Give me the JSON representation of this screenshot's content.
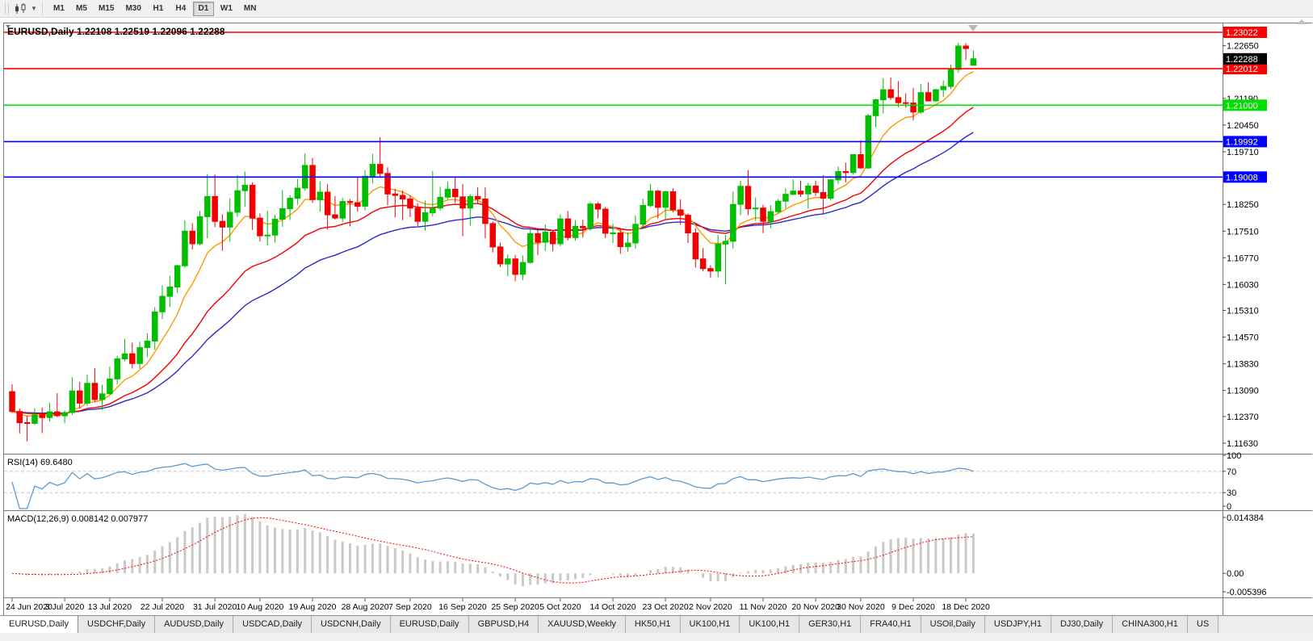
{
  "toolbar": {
    "chart_type_icon": "candlestick-chart-icon",
    "dropdown_glyph": "▼",
    "timeframes": [
      "M1",
      "M5",
      "M15",
      "M30",
      "H1",
      "H4",
      "D1",
      "W1",
      "MN"
    ],
    "selected_timeframe": "D1"
  },
  "chart": {
    "title": "EURUSD,Daily 1.22108 1.22519 1.22096 1.22288",
    "symbol": "EURUSD,Daily",
    "open": "1.22108",
    "high": "1.22519",
    "low": "1.22096",
    "close": "1.22288"
  },
  "price_axis": {
    "ticks": [
      1.2265,
      1.2119,
      1.2045,
      1.1971,
      1.1825,
      1.1751,
      1.1677,
      1.1603,
      1.1531,
      1.1457,
      1.1383,
      1.1309,
      1.1237,
      1.1163
    ]
  },
  "rsi_axis": {
    "labels": [
      "100",
      "70",
      "30",
      "0"
    ]
  },
  "macd_axis": {
    "labels": [
      "0.014384",
      "0.00",
      "-0.005396"
    ]
  },
  "time_axis": {
    "labels": [
      {
        "text": "24 Jun 2020",
        "bar": 0
      },
      {
        "text": "3 Jul 2020",
        "bar": 7
      },
      {
        "text": "13 Jul 2020",
        "bar": 13
      },
      {
        "text": "22 Jul 2020",
        "bar": 20
      },
      {
        "text": "31 Jul 2020",
        "bar": 27
      },
      {
        "text": "10 Aug 2020",
        "bar": 33
      },
      {
        "text": "19 Aug 2020",
        "bar": 40
      },
      {
        "text": "28 Aug 2020",
        "bar": 47
      },
      {
        "text": "7 Sep 2020",
        "bar": 53
      },
      {
        "text": "16 Sep 2020",
        "bar": 60
      },
      {
        "text": "25 Sep 2020",
        "bar": 67
      },
      {
        "text": "5 Oct 2020",
        "bar": 73
      },
      {
        "text": "14 Oct 2020",
        "bar": 80
      },
      {
        "text": "23 Oct 2020",
        "bar": 87
      },
      {
        "text": "2 Nov 2020",
        "bar": 93
      },
      {
        "text": "11 Nov 2020",
        "bar": 100
      },
      {
        "text": "20 Nov 2020",
        "bar": 107
      },
      {
        "text": "30 Nov 2020",
        "bar": 113
      },
      {
        "text": "9 Dec 2020",
        "bar": 120
      },
      {
        "text": "18 Dec 2020",
        "bar": 127
      }
    ]
  },
  "tabs": [
    {
      "label": "EURUSD,Daily",
      "active": true
    },
    {
      "label": "USDCHF,Daily"
    },
    {
      "label": "AUDUSD,Daily"
    },
    {
      "label": "USDCAD,Daily"
    },
    {
      "label": "USDCNH,Daily"
    },
    {
      "label": "EURUSD,Daily"
    },
    {
      "label": "GBPUSD,H4"
    },
    {
      "label": "XAUUSD,Weekly"
    },
    {
      "label": "HK50,H1"
    },
    {
      "label": "UK100,H1"
    },
    {
      "label": "UK100,H1"
    },
    {
      "label": "GER30,H1"
    },
    {
      "label": "FRA40,H1"
    },
    {
      "label": "USOil,Daily"
    },
    {
      "label": "USDJPY,H1"
    },
    {
      "label": "DJ30,Daily"
    },
    {
      "label": "CHINA300,H1"
    },
    {
      "label": "US"
    }
  ],
  "chart_data": {
    "type": "candlestick",
    "symbol": "EURUSD",
    "timeframe": "Daily",
    "date_range": "24 Jun 2020 - 21 Dec 2020",
    "colors": {
      "bull": "#00bf00",
      "bear": "#f20000",
      "background": "#ffffff"
    },
    "current_price": {
      "value": 1.22288,
      "bg": "#000000",
      "fg": "#ffffff"
    },
    "hlines": [
      {
        "price": 1.23022,
        "color": "#ff0000"
      },
      {
        "price": 1.22012,
        "color": "#ff0000"
      },
      {
        "price": 1.21,
        "color": "#00e000"
      },
      {
        "price": 1.19992,
        "color": "#0000ff"
      },
      {
        "price": 1.19008,
        "color": "#0000ff"
      }
    ],
    "moving_averages": [
      {
        "name": "slow",
        "period": 34,
        "color": "#2a2ace"
      },
      {
        "name": "medium",
        "period": 21,
        "color": "#f40000"
      },
      {
        "name": "fast",
        "period": 8,
        "color": "#ff9900"
      }
    ],
    "indicators": {
      "rsi": {
        "label": "RSI(14) 69.6480",
        "period": 14,
        "value": 69.648,
        "levels": [
          70,
          30
        ],
        "color": "#5a9bd4"
      },
      "macd": {
        "label": "MACD(12,26,9) 0.008142 0.007977",
        "fast": 12,
        "slow": 26,
        "signal": 9,
        "main_value": 0.008142,
        "signal_value": 0.007977,
        "scale_top": 0.014384,
        "scale_bottom": -0.005396,
        "histogram_color": "#c9c9c9",
        "signal_color": "#ff0000"
      }
    },
    "candles": [
      [
        1.1306,
        1.1326,
        1.1247,
        1.1251
      ],
      [
        1.1251,
        1.1259,
        1.119,
        1.122
      ],
      [
        1.122,
        1.1239,
        1.1168,
        1.1218
      ],
      [
        1.1218,
        1.126,
        1.1214,
        1.1242
      ],
      [
        1.1242,
        1.1262,
        1.1191,
        1.1234
      ],
      [
        1.1234,
        1.1275,
        1.1223,
        1.125
      ],
      [
        1.125,
        1.1302,
        1.1235,
        1.1239
      ],
      [
        1.1239,
        1.1254,
        1.1218,
        1.1248
      ],
      [
        1.1248,
        1.1346,
        1.1241,
        1.1308
      ],
      [
        1.1308,
        1.1333,
        1.1259,
        1.1274
      ],
      [
        1.1274,
        1.1353,
        1.1266,
        1.1329
      ],
      [
        1.1329,
        1.1371,
        1.1277,
        1.1284
      ],
      [
        1.1284,
        1.1325,
        1.1255,
        1.13
      ],
      [
        1.13,
        1.1375,
        1.1297,
        1.1341
      ],
      [
        1.1341,
        1.1405,
        1.1326,
        1.1397
      ],
      [
        1.1397,
        1.1452,
        1.139,
        1.1411
      ],
      [
        1.1411,
        1.1442,
        1.137,
        1.1384
      ],
      [
        1.1384,
        1.1444,
        1.1369,
        1.1428
      ],
      [
        1.1428,
        1.1468,
        1.1402,
        1.1446
      ],
      [
        1.1446,
        1.154,
        1.1422,
        1.1527
      ],
      [
        1.1527,
        1.1601,
        1.1507,
        1.157
      ],
      [
        1.157,
        1.1627,
        1.154,
        1.1596
      ],
      [
        1.1596,
        1.1658,
        1.158,
        1.1655
      ],
      [
        1.1655,
        1.1781,
        1.1649,
        1.1751
      ],
      [
        1.1751,
        1.1773,
        1.17,
        1.1716
      ],
      [
        1.1716,
        1.1807,
        1.1712,
        1.1791
      ],
      [
        1.1791,
        1.1909,
        1.1731,
        1.1847
      ],
      [
        1.1847,
        1.1908,
        1.1762,
        1.1778
      ],
      [
        1.1778,
        1.1798,
        1.1696,
        1.1762
      ],
      [
        1.1762,
        1.1842,
        1.1722,
        1.1803
      ],
      [
        1.1803,
        1.1906,
        1.179,
        1.1863
      ],
      [
        1.1863,
        1.1916,
        1.1818,
        1.1878
      ],
      [
        1.1878,
        1.1886,
        1.1754,
        1.1787
      ],
      [
        1.1787,
        1.18,
        1.1722,
        1.1738
      ],
      [
        1.1738,
        1.1808,
        1.1711,
        1.174
      ],
      [
        1.174,
        1.1796,
        1.1719,
        1.1784
      ],
      [
        1.1784,
        1.1865,
        1.1763,
        1.1813
      ],
      [
        1.1813,
        1.1851,
        1.1782,
        1.1842
      ],
      [
        1.1842,
        1.1896,
        1.1824,
        1.187
      ],
      [
        1.187,
        1.1966,
        1.1863,
        1.1933
      ],
      [
        1.1933,
        1.1954,
        1.1829,
        1.1838
      ],
      [
        1.1838,
        1.1889,
        1.1805,
        1.1859
      ],
      [
        1.1859,
        1.1882,
        1.1755,
        1.1796
      ],
      [
        1.1796,
        1.1848,
        1.1783,
        1.1787
      ],
      [
        1.1787,
        1.1843,
        1.1775,
        1.1833
      ],
      [
        1.1833,
        1.1839,
        1.1764,
        1.183
      ],
      [
        1.183,
        1.1899,
        1.1805,
        1.182
      ],
      [
        1.182,
        1.192,
        1.1808,
        1.1903
      ],
      [
        1.1903,
        1.1965,
        1.1883,
        1.1936
      ],
      [
        1.1936,
        1.2011,
        1.1898,
        1.1911
      ],
      [
        1.1911,
        1.1928,
        1.1822,
        1.1854
      ],
      [
        1.1854,
        1.1868,
        1.1789,
        1.185
      ],
      [
        1.185,
        1.1864,
        1.1781,
        1.184
      ],
      [
        1.184,
        1.185,
        1.179,
        1.1815
      ],
      [
        1.1815,
        1.1828,
        1.1765,
        1.1778
      ],
      [
        1.1778,
        1.1834,
        1.1753,
        1.1802
      ],
      [
        1.1802,
        1.1918,
        1.1791,
        1.1815
      ],
      [
        1.1815,
        1.1874,
        1.1808,
        1.1845
      ],
      [
        1.1845,
        1.1888,
        1.1839,
        1.1867
      ],
      [
        1.1867,
        1.19,
        1.1829,
        1.1846
      ],
      [
        1.1846,
        1.1882,
        1.1737,
        1.1815
      ],
      [
        1.1815,
        1.1853,
        1.1766,
        1.1847
      ],
      [
        1.1847,
        1.1872,
        1.1826,
        1.184
      ],
      [
        1.184,
        1.1872,
        1.1731,
        1.1772
      ],
      [
        1.1772,
        1.1778,
        1.1692,
        1.1707
      ],
      [
        1.1707,
        1.1719,
        1.1651,
        1.166
      ],
      [
        1.166,
        1.1686,
        1.1626,
        1.1674
      ],
      [
        1.1674,
        1.1685,
        1.1612,
        1.1631
      ],
      [
        1.1631,
        1.1683,
        1.1615,
        1.1664
      ],
      [
        1.1664,
        1.1755,
        1.1661,
        1.1744
      ],
      [
        1.1744,
        1.1755,
        1.1684,
        1.172
      ],
      [
        1.172,
        1.1769,
        1.1696,
        1.1748
      ],
      [
        1.1748,
        1.1752,
        1.1695,
        1.1716
      ],
      [
        1.1716,
        1.1797,
        1.1709,
        1.1785
      ],
      [
        1.1785,
        1.1807,
        1.1725,
        1.1733
      ],
      [
        1.1733,
        1.1781,
        1.1724,
        1.1764
      ],
      [
        1.1764,
        1.1782,
        1.1733,
        1.176
      ],
      [
        1.176,
        1.1831,
        1.1752,
        1.1826
      ],
      [
        1.1826,
        1.1831,
        1.1786,
        1.1812
      ],
      [
        1.1812,
        1.1818,
        1.1732,
        1.1745
      ],
      [
        1.1745,
        1.1771,
        1.1718,
        1.1746
      ],
      [
        1.1746,
        1.1758,
        1.1688,
        1.1708
      ],
      [
        1.1708,
        1.1747,
        1.1694,
        1.1718
      ],
      [
        1.1718,
        1.1794,
        1.1703,
        1.177
      ],
      [
        1.177,
        1.1841,
        1.1761,
        1.1822
      ],
      [
        1.1822,
        1.1881,
        1.1817,
        1.1862
      ],
      [
        1.1862,
        1.1866,
        1.1786,
        1.1817
      ],
      [
        1.1817,
        1.1863,
        1.1785,
        1.186
      ],
      [
        1.186,
        1.187,
        1.1803,
        1.181
      ],
      [
        1.181,
        1.1839,
        1.1769,
        1.1795
      ],
      [
        1.1795,
        1.18,
        1.1718,
        1.1746
      ],
      [
        1.1746,
        1.1759,
        1.165,
        1.1674
      ],
      [
        1.1674,
        1.1704,
        1.164,
        1.1647
      ],
      [
        1.1647,
        1.1656,
        1.1622,
        1.164
      ],
      [
        1.164,
        1.1741,
        1.1623,
        1.1715
      ],
      [
        1.1715,
        1.174,
        1.1603,
        1.1723
      ],
      [
        1.1723,
        1.1861,
        1.1702,
        1.1825
      ],
      [
        1.1825,
        1.1891,
        1.1795,
        1.1875
      ],
      [
        1.1875,
        1.192,
        1.1795,
        1.1813
      ],
      [
        1.1813,
        1.1844,
        1.1779,
        1.1815
      ],
      [
        1.1815,
        1.1824,
        1.1745,
        1.1778
      ],
      [
        1.1778,
        1.1823,
        1.1759,
        1.1805
      ],
      [
        1.1805,
        1.184,
        1.1799,
        1.1834
      ],
      [
        1.1834,
        1.1869,
        1.1814,
        1.1853
      ],
      [
        1.1853,
        1.1894,
        1.185,
        1.1862
      ],
      [
        1.1862,
        1.1891,
        1.1846,
        1.1854
      ],
      [
        1.1854,
        1.1885,
        1.1813,
        1.1876
      ],
      [
        1.1876,
        1.1891,
        1.1849,
        1.1858
      ],
      [
        1.1858,
        1.1906,
        1.18,
        1.1842
      ],
      [
        1.1842,
        1.1895,
        1.1836,
        1.1893
      ],
      [
        1.1893,
        1.193,
        1.1881,
        1.1916
      ],
      [
        1.1916,
        1.1941,
        1.1886,
        1.1913
      ],
      [
        1.1913,
        1.1964,
        1.1908,
        1.1963
      ],
      [
        1.1963,
        1.2003,
        1.1923,
        1.1926
      ],
      [
        1.1926,
        1.2076,
        1.1923,
        1.2071
      ],
      [
        1.2071,
        1.2118,
        1.2039,
        1.2115
      ],
      [
        1.2115,
        1.2175,
        1.2077,
        1.2143
      ],
      [
        1.2143,
        1.2177,
        1.2115,
        1.2121
      ],
      [
        1.2121,
        1.2167,
        1.2095,
        1.2107
      ],
      [
        1.2107,
        1.2133,
        1.2093,
        1.2106
      ],
      [
        1.2106,
        1.2148,
        1.2058,
        1.2081
      ],
      [
        1.2081,
        1.2159,
        1.2076,
        1.2135
      ],
      [
        1.2135,
        1.2163,
        1.211,
        1.2112
      ],
      [
        1.2112,
        1.2146,
        1.2109,
        1.2143
      ],
      [
        1.2143,
        1.2169,
        1.2123,
        1.2152
      ],
      [
        1.2152,
        1.2212,
        1.2145,
        1.2199
      ],
      [
        1.2199,
        1.2273,
        1.219,
        1.2264
      ],
      [
        1.2264,
        1.2272,
        1.2225,
        1.2257
      ],
      [
        1.22108,
        1.22519,
        1.22096,
        1.22288
      ]
    ]
  }
}
